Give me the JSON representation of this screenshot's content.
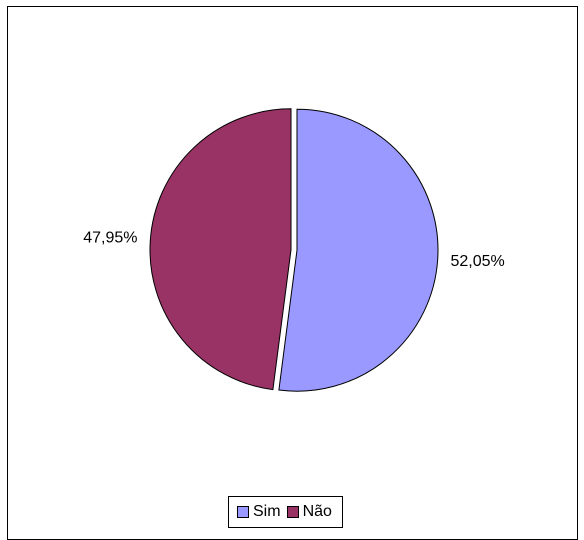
{
  "chart_data": {
    "type": "pie",
    "categories": [
      "Sim",
      "Não"
    ],
    "values": [
      52.05,
      47.95
    ],
    "labels": [
      "52,05%",
      "47,95%"
    ],
    "colors": [
      "#9999ff",
      "#993366"
    ],
    "exploded": true,
    "legend_position": "bottom"
  },
  "legend": {
    "items": [
      {
        "label": "Sim",
        "color": "#9999ff"
      },
      {
        "label": "Não",
        "color": "#993366"
      }
    ]
  }
}
